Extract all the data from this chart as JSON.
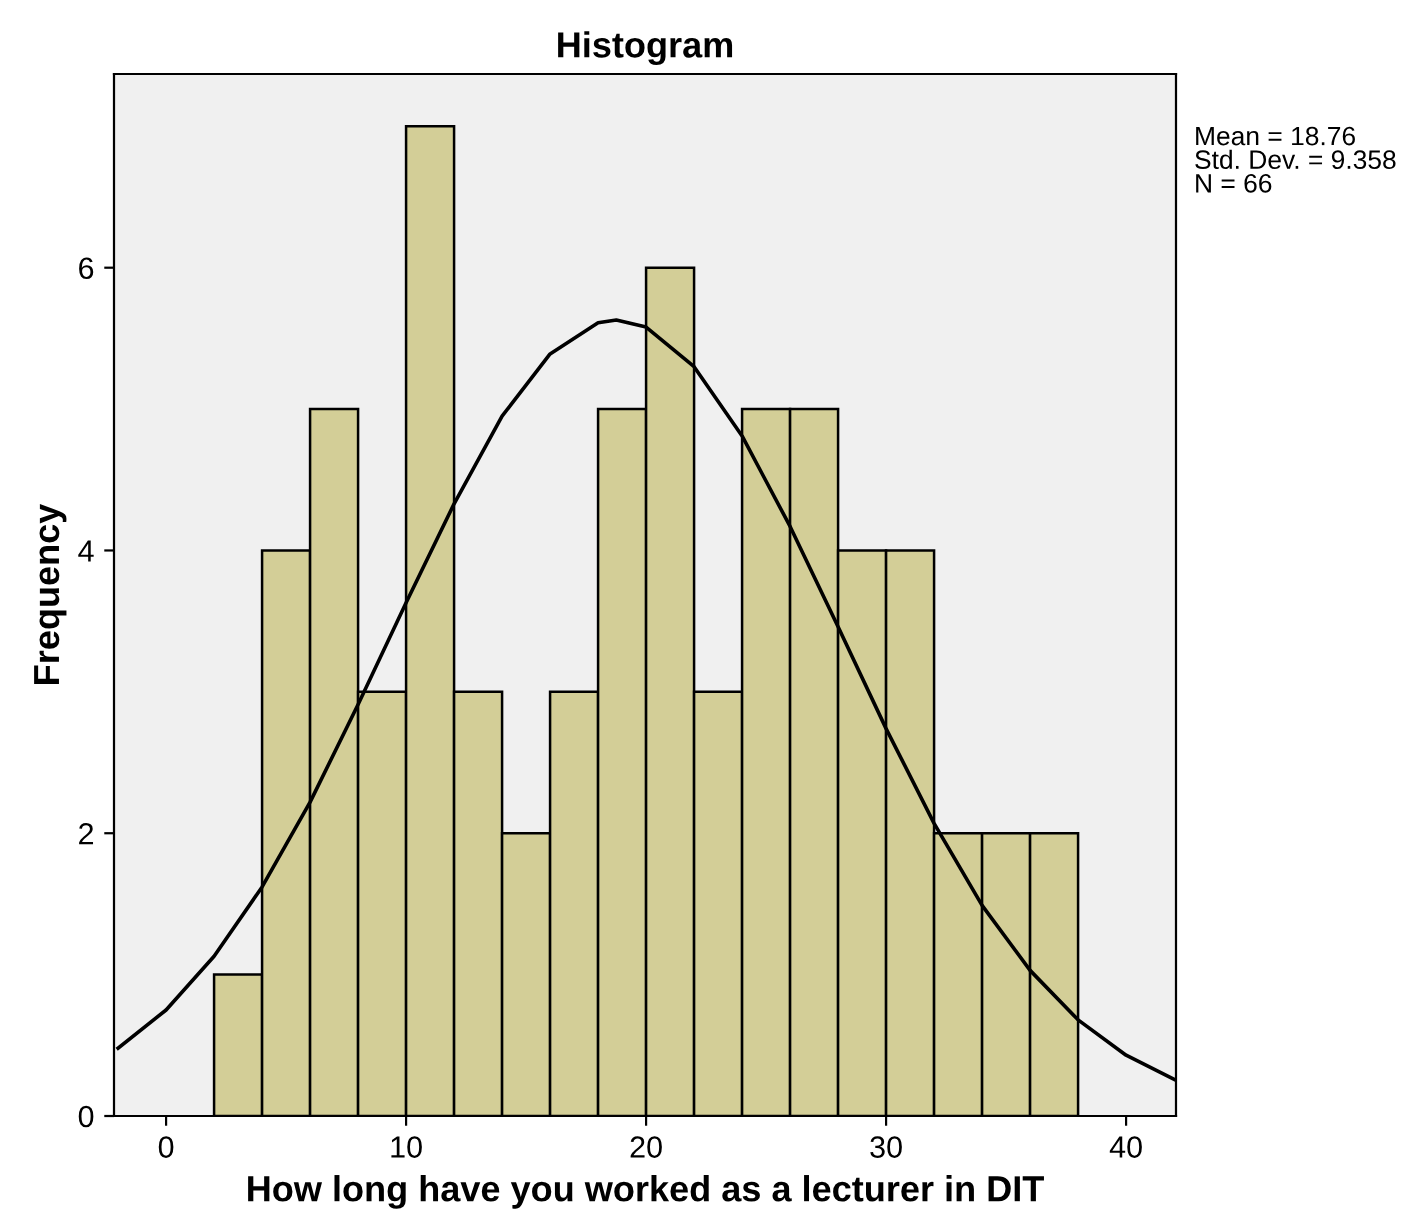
{
  "chart_data": {
    "type": "histogram",
    "title": "Histogram",
    "xlabel": "How long have you worked as a lecturer in DIT",
    "ylabel": "Frequency",
    "series": [
      {
        "color": "#d3ce97",
        "bins": [
          2,
          4,
          6,
          8,
          10,
          12,
          14,
          16,
          18,
          20,
          22,
          24,
          26,
          28,
          30,
          32,
          34,
          36,
          38
        ],
        "values": [
          1,
          4,
          5,
          3,
          7,
          3,
          2,
          3,
          5,
          6,
          3,
          5,
          5,
          4,
          4,
          2,
          2,
          2
        ]
      },
      {
        "type": "line",
        "color": "#000000",
        "x": [
          -2,
          0,
          2,
          4,
          6,
          8,
          10,
          12,
          14,
          16,
          18,
          18.76,
          20,
          22,
          24,
          26,
          28,
          30,
          32,
          34,
          36,
          38,
          40,
          42
        ],
        "values": [
          0.48,
          0.75,
          1.13,
          1.62,
          2.22,
          2.91,
          3.63,
          4.33,
          4.95,
          5.39,
          5.61,
          5.63,
          5.58,
          5.3,
          4.81,
          4.17,
          3.46,
          2.74,
          2.07,
          1.49,
          1.03,
          0.68,
          0.43,
          0.26
        ]
      }
    ],
    "xlim": [
      -2.17,
      42.08
    ],
    "ylim": [
      0,
      7.37
    ],
    "xticks": [
      0,
      10,
      20,
      30,
      40
    ],
    "yticks": [
      0,
      2,
      4,
      6
    ],
    "grid": false,
    "annotations": [
      "Mean = 18.76\nStd. Dev. = 9.358\nN = 66"
    ]
  }
}
